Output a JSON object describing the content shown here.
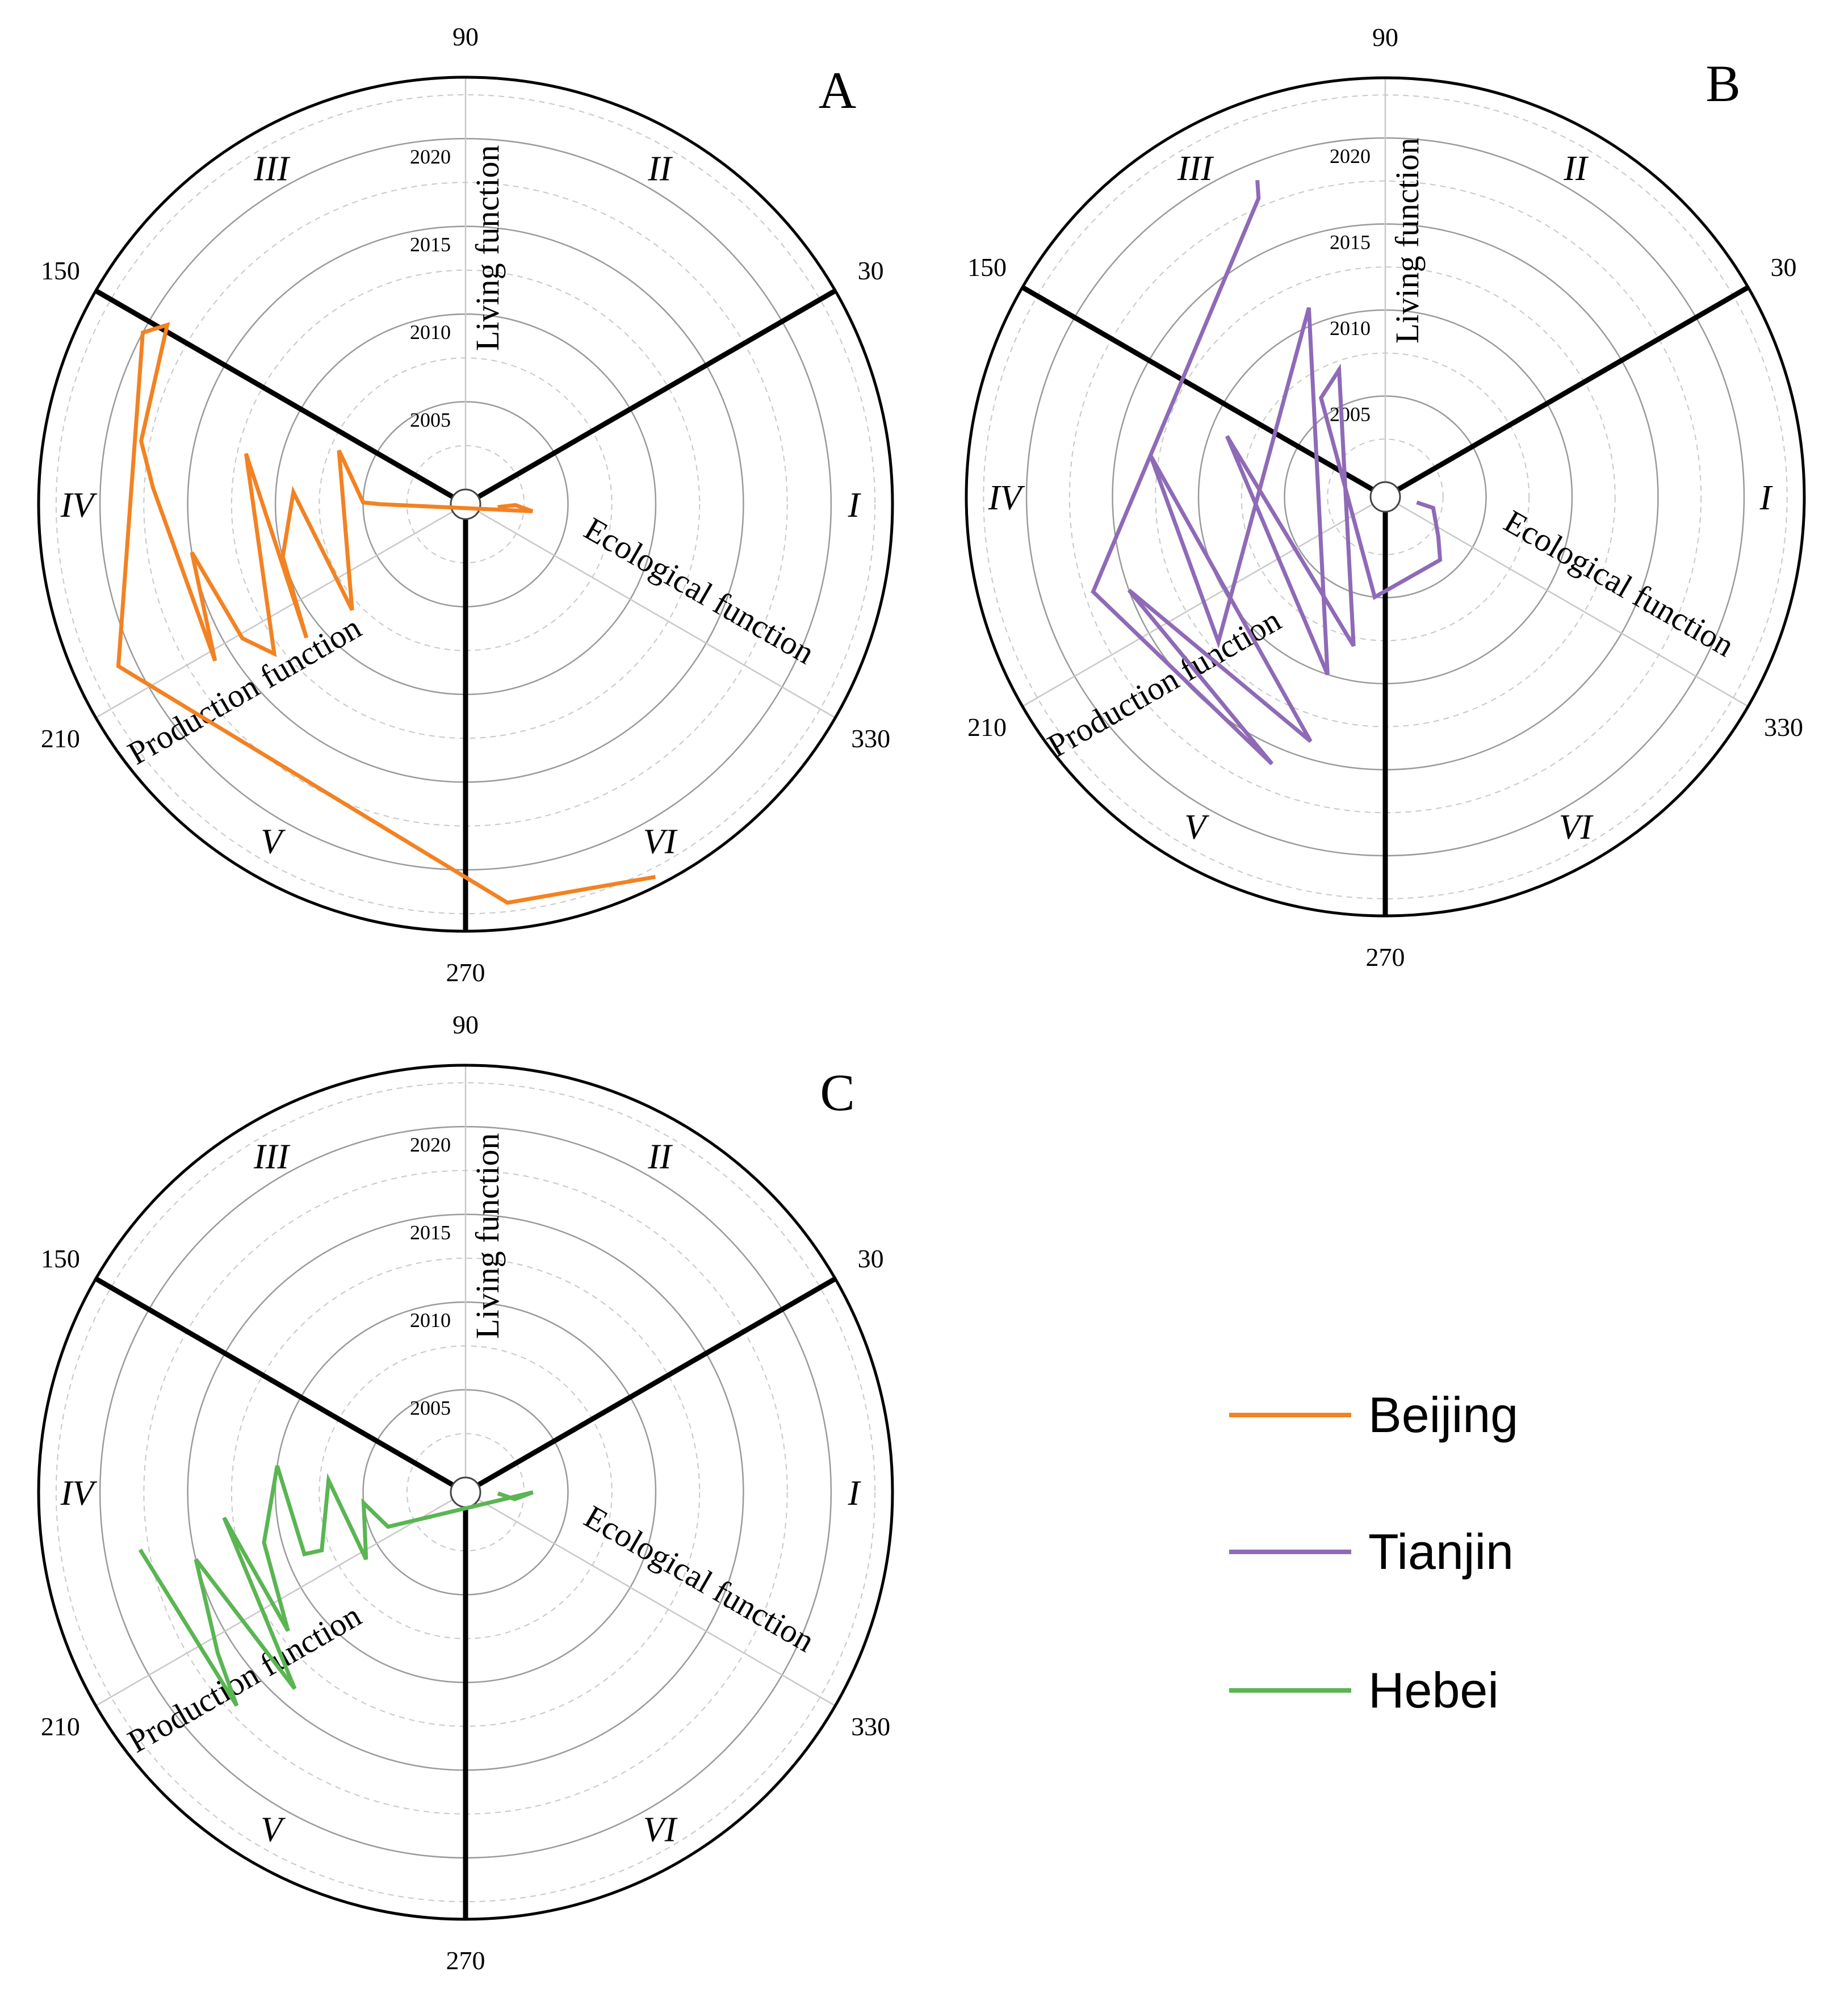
{
  "chart_data": [
    {
      "type": "polar-line",
      "panel": "A",
      "series": [
        {
          "name": "Beijing",
          "color": "#F28222",
          "points": [
            {
              "year": 2001,
              "angle": 355
            },
            {
              "year": 2002,
              "angle": 359
            },
            {
              "year": 2003,
              "angle": 354
            },
            {
              "year": 2004,
              "angle": 180
            },
            {
              "year": 2005,
              "angle": 179
            },
            {
              "year": 2006,
              "angle": 165
            },
            {
              "year": 2007,
              "angle": 157
            },
            {
              "year": 2008,
              "angle": 223
            },
            {
              "year": 2009,
              "angle": 176
            },
            {
              "year": 2010,
              "angle": 196
            },
            {
              "year": 2011,
              "angle": 220
            },
            {
              "year": 2012,
              "angle": 167
            },
            {
              "year": 2013,
              "angle": 218
            },
            {
              "year": 2014,
              "angle": 211
            },
            {
              "year": 2015,
              "angle": 190
            },
            {
              "year": 2016,
              "angle": 212
            },
            {
              "year": 2017,
              "angle": 177
            },
            {
              "year": 2018,
              "angle": 169
            },
            {
              "year": 2019,
              "angle": 149
            },
            {
              "year": 2020,
              "angle": 152
            },
            {
              "year": 2021,
              "angle": 205
            },
            {
              "year": 2022,
              "angle": 276
            },
            {
              "year": 2023,
              "angle": 297
            }
          ]
        }
      ]
    },
    {
      "type": "polar-line",
      "panel": "B",
      "series": [
        {
          "name": "Tianjin",
          "color": "#8E6AB7",
          "points": [
            {
              "year": 2001,
              "angle": 350
            },
            {
              "year": 2002,
              "angle": 347
            },
            {
              "year": 2003,
              "angle": 323
            },
            {
              "year": 2004,
              "angle": 311
            },
            {
              "year": 2005,
              "angle": 264
            },
            {
              "year": 2006,
              "angle": 123
            },
            {
              "year": 2007,
              "angle": 110
            },
            {
              "year": 2008,
              "angle": 258
            },
            {
              "year": 2009,
              "angle": 159
            },
            {
              "year": 2010,
              "angle": 252
            },
            {
              "year": 2011,
              "angle": 112
            },
            {
              "year": 2012,
              "angle": 221
            },
            {
              "year": 2013,
              "angle": 170
            },
            {
              "year": 2014,
              "angle": 253
            },
            {
              "year": 2015,
              "angle": 200
            },
            {
              "year": 2016,
              "angle": 247
            },
            {
              "year": 2017,
              "angle": 198
            },
            {
              "year": 2018,
              "angle": 113
            },
            {
              "year": 2019,
              "angle": 112
            }
          ]
        }
      ]
    },
    {
      "type": "polar-line",
      "panel": "C",
      "series": [
        {
          "name": "Hebei",
          "color": "#5AB552",
          "points": [
            {
              "year": 2001,
              "angle": 358
            },
            {
              "year": 2002,
              "angle": 352
            },
            {
              "year": 2003,
              "angle": 360
            },
            {
              "year": 2004,
              "angle": 204
            },
            {
              "year": 2005,
              "angle": 186
            },
            {
              "year": 2006,
              "angle": 214
            },
            {
              "year": 2007,
              "angle": 175
            },
            {
              "year": 2008,
              "angle": 202
            },
            {
              "year": 2009,
              "angle": 201
            },
            {
              "year": 2010,
              "angle": 172
            },
            {
              "year": 2011,
              "angle": 194
            },
            {
              "year": 2012,
              "angle": 218
            },
            {
              "year": 2013,
              "angle": 186
            },
            {
              "year": 2014,
              "angle": 229
            },
            {
              "year": 2015,
              "angle": 194
            },
            {
              "year": 2016,
              "angle": 213
            },
            {
              "year": 2017,
              "angle": 223
            },
            {
              "year": 2018,
              "angle": 190
            }
          ]
        }
      ]
    }
  ],
  "common": {
    "angle_ticks": [
      "90",
      "30",
      "330",
      "270",
      "210",
      "150"
    ],
    "year_rings": [
      "2005",
      "2010",
      "2015",
      "2020"
    ],
    "sectors": [
      "I",
      "II",
      "III",
      "IV",
      "V",
      "VI"
    ],
    "function_labels": {
      "living": "Living function",
      "ecological": "Ecological function",
      "production": "Production function"
    }
  },
  "panels": [
    "A",
    "B",
    "C"
  ],
  "legend": [
    {
      "label": "Beijing",
      "color": "#F28222"
    },
    {
      "label": "Tianjin",
      "color": "#8E6AB7"
    },
    {
      "label": "Hebei",
      "color": "#5AB552"
    }
  ]
}
